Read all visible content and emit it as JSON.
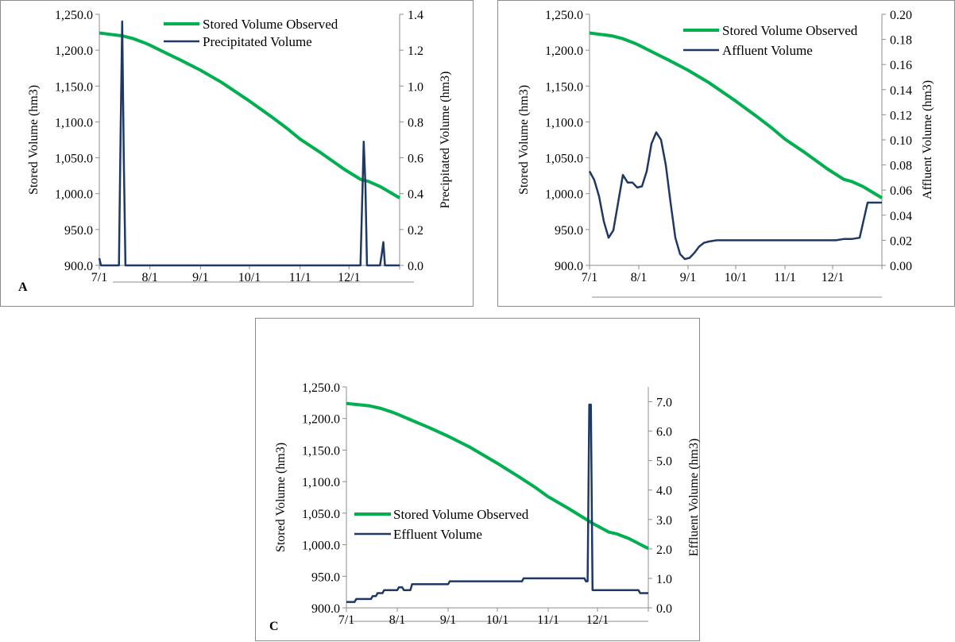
{
  "chart_data": [
    {
      "panel": "A",
      "type": "line",
      "x_tick_labels": [
        "7/1",
        "8/1",
        "9/1",
        "10/1",
        "11/1",
        "12/1"
      ],
      "x_range": [
        0,
        184
      ],
      "ylabel": "Stored Volume (hm3)",
      "ylim": [
        900,
        1250
      ],
      "y_ticks": [
        "900.0",
        "950.0",
        "1,000.0",
        "1,050.0",
        "1,100.0",
        "1,150.0",
        "1,200.0",
        "1,250.0"
      ],
      "y2label": "Precipitated Volume (hm3)",
      "y2lim": [
        0,
        1.4
      ],
      "y2_ticks": [
        "0.0",
        "0.2",
        "0.4",
        "0.6",
        "0.8",
        "1.0",
        "1.2",
        "1.4"
      ],
      "legend": "top-right",
      "series": [
        {
          "name": "Stored Volume Observed",
          "axis": "left",
          "color": "#00b050",
          "x": [
            0,
            7,
            14,
            21,
            28,
            31,
            40,
            50,
            62,
            75,
            92,
            105,
            115,
            123,
            135,
            150,
            160,
            165,
            172,
            178,
            184
          ],
          "y": [
            1224,
            1222,
            1220,
            1216,
            1210,
            1207,
            1197,
            1186,
            1172,
            1155,
            1129,
            1108,
            1091,
            1076,
            1058,
            1034,
            1020,
            1017,
            1010,
            1002,
            994
          ]
        },
        {
          "name": "Precipitated Volume",
          "axis": "right",
          "color": "#1f3864",
          "x": [
            0,
            1,
            12,
            13,
            14,
            15,
            16,
            160,
            161,
            162,
            163,
            164,
            172,
            173,
            174,
            175,
            184
          ],
          "y": [
            0.04,
            0,
            0,
            0.7,
            1.36,
            0.6,
            0,
            0,
            0.35,
            0.69,
            0.45,
            0,
            0,
            0.06,
            0.13,
            0,
            0
          ]
        }
      ]
    },
    {
      "panel": "B",
      "type": "line",
      "x_tick_labels": [
        "7/1",
        "8/1",
        "9/1",
        "10/1",
        "11/1",
        "12/1"
      ],
      "x_range": [
        0,
        184
      ],
      "ylabel": "Stored Volume (hm3)",
      "ylim": [
        900,
        1250
      ],
      "y_ticks": [
        "900.0",
        "950.0",
        "1,000.0",
        "1,050.0",
        "1,100.0",
        "1,150.0",
        "1,200.0",
        "1,250.0"
      ],
      "y2label": "Affluent Volume (hm3)",
      "y2lim": [
        0,
        0.2
      ],
      "y2_ticks": [
        "0.00",
        "0.02",
        "0.04",
        "0.06",
        "0.08",
        "0.10",
        "0.12",
        "0.14",
        "0.16",
        "0.18",
        "0.20"
      ],
      "legend": "top-right",
      "series": [
        {
          "name": "Stored Volume Observed",
          "axis": "left",
          "color": "#00b050",
          "x": [
            0,
            7,
            14,
            21,
            28,
            31,
            40,
            50,
            62,
            75,
            92,
            105,
            115,
            123,
            135,
            150,
            160,
            165,
            172,
            178,
            184
          ],
          "y": [
            1224,
            1222,
            1220,
            1216,
            1210,
            1207,
            1197,
            1186,
            1172,
            1155,
            1129,
            1108,
            1091,
            1076,
            1058,
            1034,
            1020,
            1017,
            1010,
            1002,
            994
          ]
        },
        {
          "name": "Affluent Volume",
          "axis": "right",
          "color": "#1f3864",
          "x": [
            0,
            3,
            6,
            9,
            12,
            15,
            18,
            21,
            24,
            27,
            30,
            33,
            36,
            39,
            42,
            45,
            48,
            51,
            54,
            57,
            60,
            63,
            66,
            69,
            72,
            75,
            80,
            85,
            90,
            100,
            110,
            120,
            130,
            140,
            150,
            155,
            160,
            165,
            170,
            175,
            178,
            182,
            184
          ],
          "y": [
            0.075,
            0.068,
            0.055,
            0.035,
            0.022,
            0.028,
            0.05,
            0.072,
            0.066,
            0.066,
            0.062,
            0.063,
            0.075,
            0.097,
            0.106,
            0.1,
            0.08,
            0.05,
            0.022,
            0.009,
            0.005,
            0.006,
            0.01,
            0.015,
            0.018,
            0.019,
            0.02,
            0.02,
            0.02,
            0.02,
            0.02,
            0.02,
            0.02,
            0.02,
            0.02,
            0.02,
            0.021,
            0.021,
            0.022,
            0.05,
            0.05,
            0.05,
            0.05
          ]
        }
      ]
    },
    {
      "panel": "C",
      "type": "line",
      "x_tick_labels": [
        "7/1",
        "8/1",
        "9/1",
        "10/1",
        "11/1",
        "12/1"
      ],
      "x_range": [
        0,
        184
      ],
      "ylabel": "Stored Volume (hm3)",
      "ylim": [
        900,
        1250
      ],
      "y_ticks": [
        "900.0",
        "950.0",
        "1,000.0",
        "1,050.0",
        "1,100.0",
        "1,150.0",
        "1,200.0",
        "1,250.0"
      ],
      "y2label": "Effluent Volume (hm3)",
      "y2lim": [
        0,
        7.5
      ],
      "y2_ticks": [
        "0.0",
        "1.0",
        "2.0",
        "3.0",
        "4.0",
        "5.0",
        "6.0",
        "7.0"
      ],
      "legend": "bottom-left",
      "series": [
        {
          "name": "Stored Volume Observed",
          "axis": "left",
          "color": "#00b050",
          "x": [
            0,
            7,
            14,
            21,
            28,
            31,
            40,
            50,
            62,
            75,
            92,
            105,
            115,
            123,
            135,
            150,
            160,
            165,
            172,
            178,
            184
          ],
          "y": [
            1224,
            1222,
            1220,
            1216,
            1210,
            1207,
            1197,
            1186,
            1172,
            1155,
            1129,
            1108,
            1091,
            1076,
            1058,
            1034,
            1020,
            1017,
            1010,
            1002,
            994
          ]
        },
        {
          "name": "Effluent Volume",
          "axis": "right",
          "color": "#1f3864",
          "x": [
            0,
            5,
            6,
            15,
            16,
            18,
            19,
            22,
            23,
            31,
            32,
            34,
            35,
            39,
            40,
            44,
            45,
            62,
            63,
            107,
            108,
            145,
            146,
            147,
            148,
            149,
            150,
            151,
            178,
            179,
            184
          ],
          "y": [
            0.2,
            0.2,
            0.3,
            0.3,
            0.4,
            0.4,
            0.5,
            0.5,
            0.6,
            0.6,
            0.7,
            0.7,
            0.6,
            0.6,
            0.8,
            0.8,
            0.8,
            0.8,
            0.9,
            0.9,
            1.0,
            1.0,
            0.9,
            0.9,
            6.9,
            6.9,
            0.6,
            0.6,
            0.6,
            0.5,
            0.5
          ]
        }
      ]
    }
  ],
  "panels": [
    {
      "label": "A"
    },
    {
      "label": ""
    },
    {
      "label": "C"
    }
  ]
}
